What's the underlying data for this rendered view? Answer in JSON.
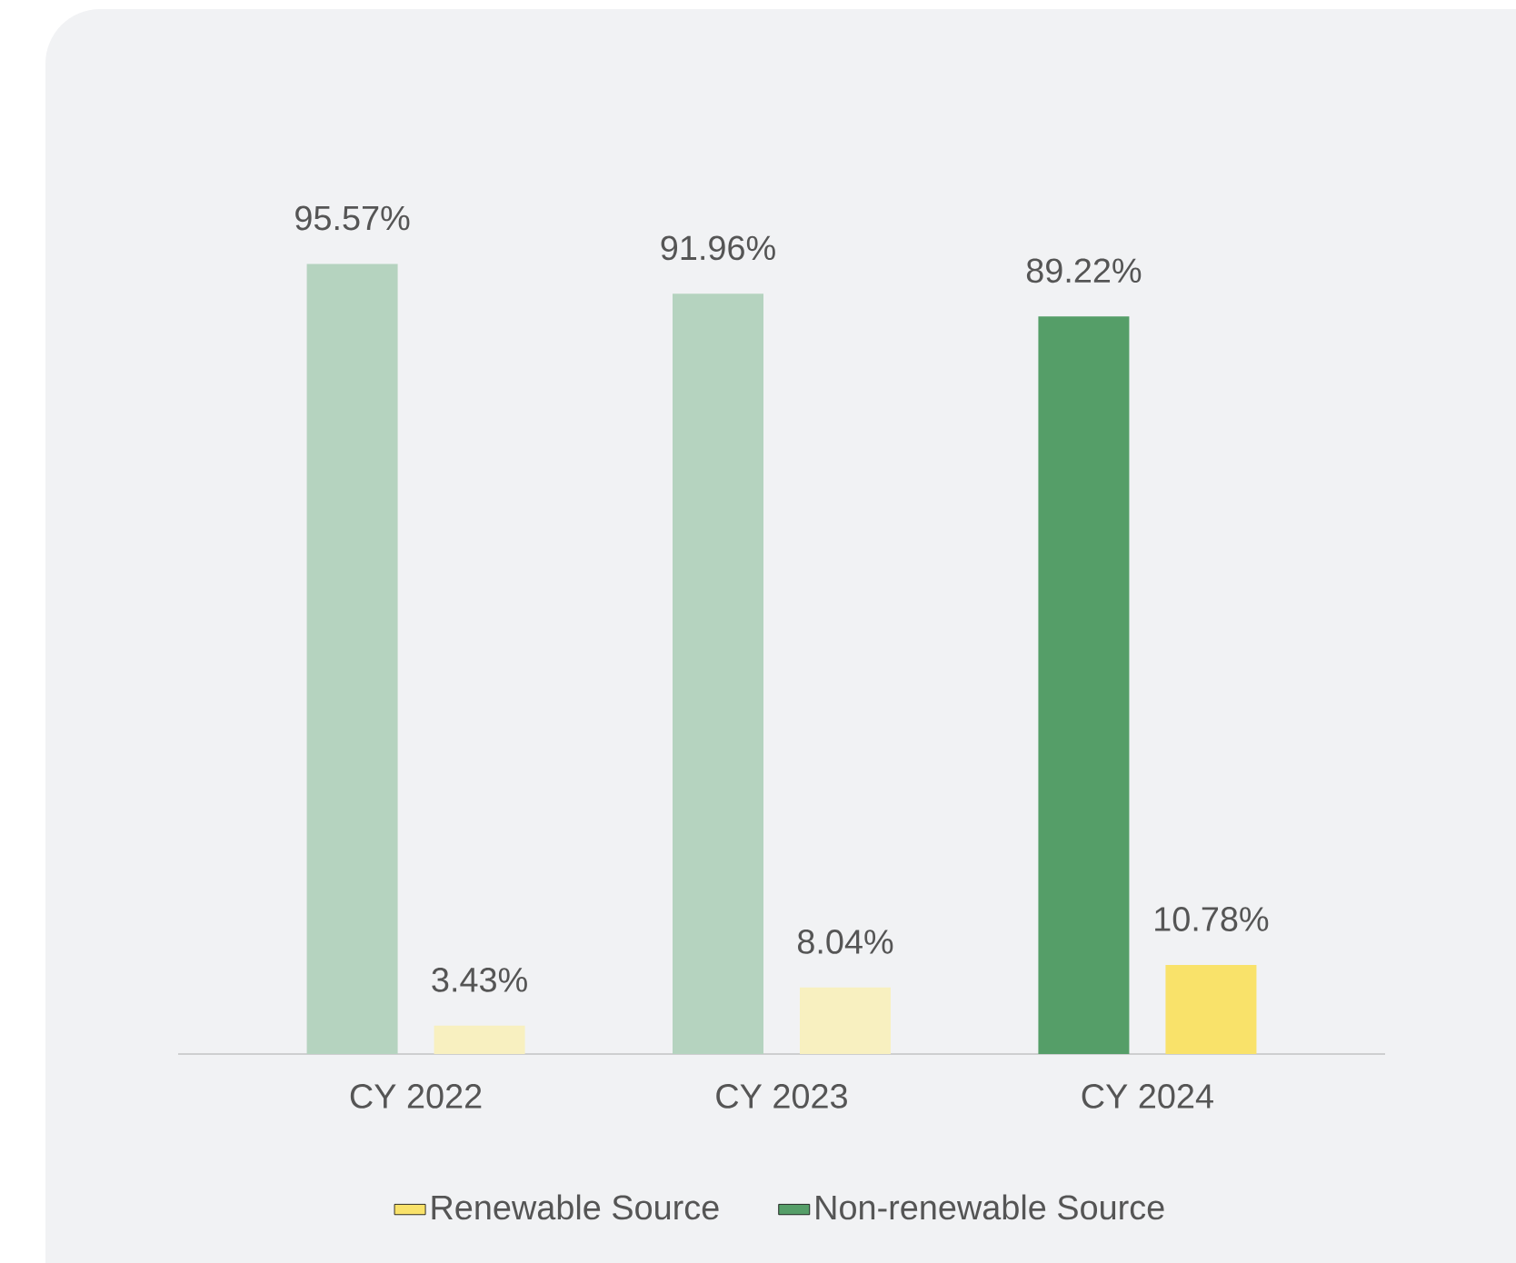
{
  "chart_data": {
    "type": "bar",
    "categories": [
      "CY 2022",
      "CY 2023",
      "CY 2024"
    ],
    "series": [
      {
        "name": "Non-renewable Source",
        "color": "#559e68",
        "colors": [
          "#b5d3bf",
          "#b5d3bf",
          "#559e68"
        ],
        "values": [
          95.57,
          91.96,
          89.22
        ],
        "value_labels": [
          "95.57%",
          "91.96%",
          "89.22%"
        ]
      },
      {
        "name": "Renewable Source",
        "color": "#f9e26a",
        "colors": [
          "#f8f0c0",
          "#f8f0c0",
          "#f9e26a"
        ],
        "values": [
          3.43,
          8.04,
          10.78
        ],
        "value_labels": [
          "3.43%",
          "8.04%",
          "10.78%"
        ]
      }
    ],
    "legend": "bottom"
  }
}
